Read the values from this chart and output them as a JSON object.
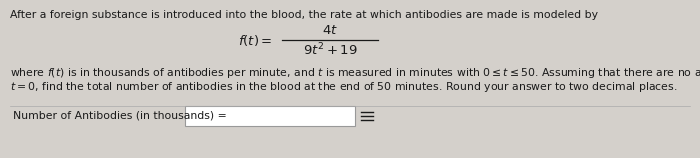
{
  "bg_color": "#d4d0cb",
  "card_color": "#f0eeeb",
  "text_color": "#1a1a1a",
  "line1": "After a foreign substance is introduced into the blood, the rate at which antibodies are made is modeled by",
  "func_lhs": "$f(t) =$",
  "numerator": "$4t$",
  "denominator": "$9t^2 + 19$",
  "line3": "where $f(t)$ is in thousands of antibodies per minute, and $t$ is measured in minutes with $0 \\leq t \\leq 50$. Assuming that there are no antibodies present at time",
  "line4": "$t = 0$, find the total number of antibodies in the blood at the end of 50 minutes. Round your answer to two decimal places.",
  "answer_label": "Number of Antibodies (in thousands) =",
  "grid_symbol": "≡",
  "fs_body": 7.8,
  "fs_formula": 9.5
}
